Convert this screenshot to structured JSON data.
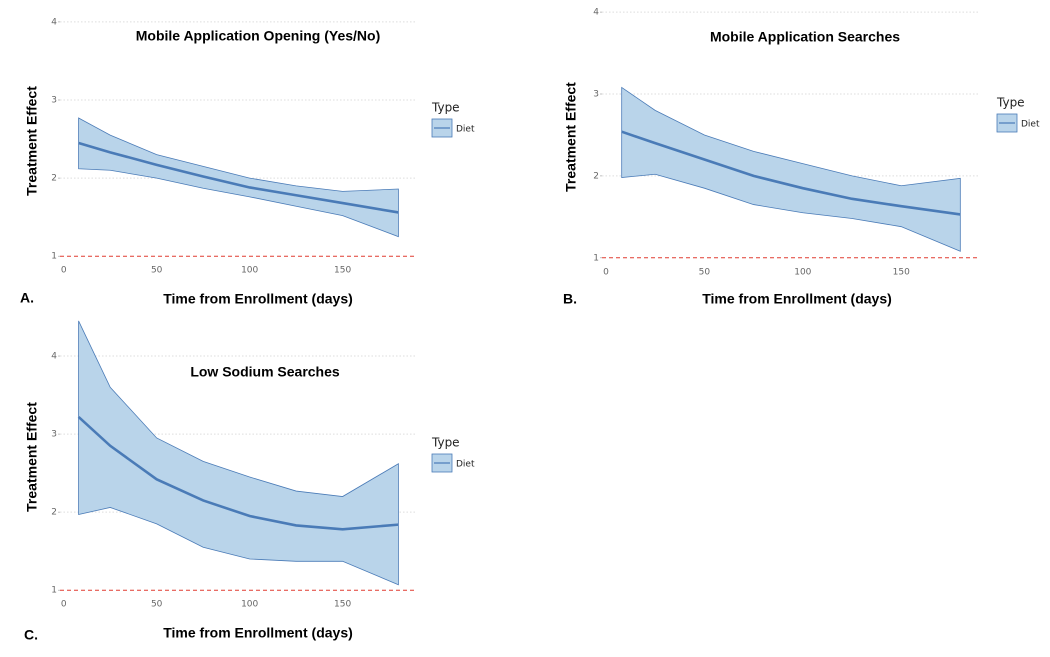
{
  "chart_data": [
    {
      "type": "line",
      "panel": "A.",
      "title": "Mobile Application Opening (Yes/No)",
      "xlabel": "Time from Enrollment (days)",
      "ylabel": "Treatment Effect",
      "legend_title": "Type",
      "x": [
        8,
        25,
        50,
        75,
        100,
        125,
        150,
        180
      ],
      "series": [
        {
          "name": "Diet",
          "color": "#4a7bb7",
          "band_color": "#b9d4ea",
          "values": [
            2.45,
            2.33,
            2.17,
            2.02,
            1.88,
            1.78,
            1.68,
            1.56
          ],
          "upper": [
            2.77,
            2.55,
            2.3,
            2.15,
            2.0,
            1.9,
            1.83,
            1.86
          ],
          "lower": [
            2.12,
            2.1,
            2.0,
            1.87,
            1.76,
            1.64,
            1.52,
            1.25
          ]
        }
      ],
      "reference_line": 1,
      "reference_color": "#e03c31",
      "xlim": [
        -2,
        190
      ],
      "ylim": [
        0.9,
        4.05
      ],
      "xticks": [
        0,
        50,
        100,
        150
      ],
      "yticks": [
        1,
        2,
        3,
        4
      ],
      "grid": true
    },
    {
      "type": "line",
      "panel": "B.",
      "title": "Mobile Application Searches",
      "xlabel": "Time from Enrollment (days)",
      "ylabel": "Treatment Effect",
      "legend_title": "Type",
      "x": [
        8,
        25,
        50,
        75,
        100,
        125,
        150,
        180
      ],
      "series": [
        {
          "name": "Diet",
          "color": "#4a7bb7",
          "band_color": "#b9d4ea",
          "values": [
            2.54,
            2.4,
            2.2,
            2.0,
            1.85,
            1.72,
            1.63,
            1.53
          ],
          "upper": [
            3.08,
            2.8,
            2.5,
            2.3,
            2.15,
            2.0,
            1.88,
            1.97
          ],
          "lower": [
            1.98,
            2.02,
            1.85,
            1.65,
            1.55,
            1.48,
            1.38,
            1.08
          ]
        }
      ],
      "reference_line": 1,
      "reference_color": "#e03c31",
      "xlim": [
        -2,
        190
      ],
      "ylim": [
        0.9,
        4.05
      ],
      "xticks": [
        0,
        50,
        100,
        150
      ],
      "yticks": [
        1,
        2,
        3,
        4
      ],
      "grid": true
    },
    {
      "type": "line",
      "panel": "C.",
      "title": "Low Sodium Searches",
      "xlabel": "Time from Enrollment (days)",
      "ylabel": "Treatment Effect",
      "legend_title": "Type",
      "x": [
        8,
        25,
        50,
        75,
        100,
        125,
        150,
        180
      ],
      "series": [
        {
          "name": "Diet",
          "color": "#4a7bb7",
          "band_color": "#b9d4ea",
          "values": [
            3.22,
            2.85,
            2.42,
            2.15,
            1.95,
            1.83,
            1.78,
            1.84
          ],
          "upper": [
            4.45,
            3.6,
            2.95,
            2.65,
            2.45,
            2.27,
            2.2,
            2.62
          ],
          "lower": [
            1.97,
            2.06,
            1.85,
            1.55,
            1.4,
            1.37,
            1.37,
            1.07
          ]
        }
      ],
      "reference_line": 1,
      "reference_color": "#e03c31",
      "xlim": [
        -2,
        190
      ],
      "ylim": [
        0.9,
        4.5
      ],
      "xticks": [
        0,
        50,
        100,
        150
      ],
      "yticks": [
        1,
        2,
        3,
        4
      ],
      "grid": true
    }
  ]
}
